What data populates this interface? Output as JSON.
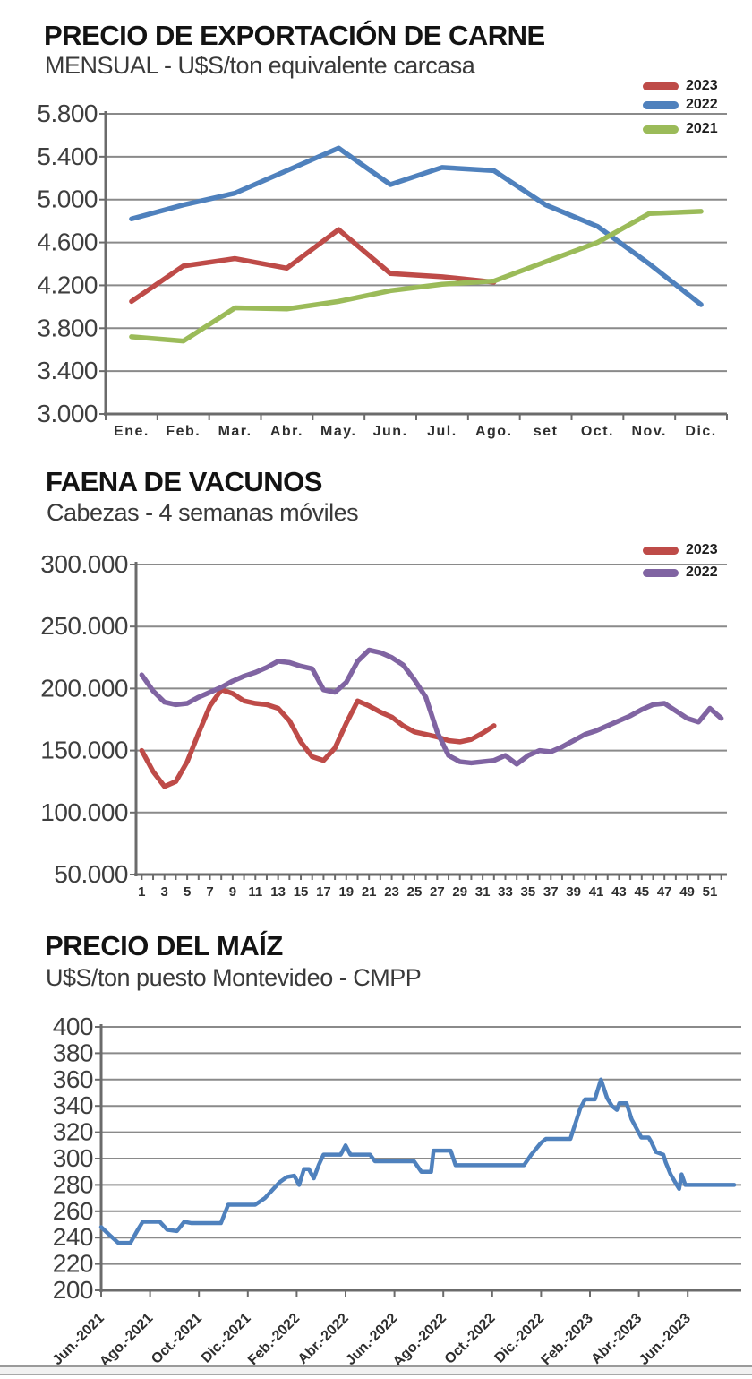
{
  "colors": {
    "red_2023": "#BE4B48",
    "blue_2022": "#4F81BD",
    "green_2021": "#9BBB59",
    "purple_2022": "#8064A2",
    "corn_blue": "#4F81BD",
    "gridline": "#8A8A8A",
    "axis": "#6B6B6B"
  },
  "chart_data": [
    {
      "type": "line",
      "title": "PRECIO DE EXPORTACIÓN DE CARNE",
      "subtitle": "MENSUAL - U$S/ton equivalente carcasa",
      "legend": [
        {
          "label": "2023",
          "color": "#BE4B48"
        },
        {
          "label": "2022",
          "color": "#4F81BD"
        },
        {
          "label": "2021",
          "color": "#9BBB59"
        }
      ],
      "categories": [
        "Ene.",
        "Feb.",
        "Mar.",
        "Abr.",
        "May.",
        "Jun.",
        "Jul.",
        "Ago.",
        "set",
        "Oct.",
        "Nov.",
        "Dic."
      ],
      "series": [
        {
          "name": "2023",
          "color": "#BE4B48",
          "values": [
            4050,
            4380,
            4450,
            4360,
            4720,
            4310,
            4280,
            4230,
            null,
            null,
            null,
            null
          ]
        },
        {
          "name": "2022",
          "color": "#4F81BD",
          "values": [
            4820,
            4950,
            5060,
            5270,
            5480,
            5140,
            5300,
            5270,
            4950,
            4750,
            4400,
            4020
          ]
        },
        {
          "name": "2021",
          "color": "#9BBB59",
          "values": [
            3720,
            3680,
            3990,
            3980,
            4050,
            4150,
            4210,
            4240,
            4420,
            4600,
            4870,
            4890
          ]
        }
      ],
      "ylim": [
        3000,
        5800
      ],
      "y_step": 400,
      "y_ticks": [
        "5.800",
        "5.400",
        "5.000",
        "4.600",
        "4.200",
        "3.800",
        "3.400",
        "3.000"
      ],
      "grid": true,
      "legend_position": "top-right"
    },
    {
      "type": "line",
      "title": "FAENA DE VACUNOS",
      "subtitle": "Cabezas - 4 semanas móviles",
      "legend": [
        {
          "label": "2023",
          "color": "#BE4B48"
        },
        {
          "label": "2022",
          "color": "#8064A2"
        }
      ],
      "x_unit": "semana",
      "x_range": [
        1,
        52
      ],
      "x_ticks": [
        "1",
        "3",
        "5",
        "7",
        "9",
        "11",
        "13",
        "15",
        "17",
        "19",
        "21",
        "23",
        "25",
        "27",
        "29",
        "31",
        "33",
        "35",
        "37",
        "39",
        "41",
        "43",
        "45",
        "47",
        "49",
        "51"
      ],
      "series": [
        {
          "name": "2023",
          "color": "#BE4B48",
          "start_week": 1,
          "values": [
            150000,
            133000,
            121000,
            125000,
            141000,
            164000,
            186000,
            199000,
            196000,
            190000,
            188000,
            187000,
            184000,
            174000,
            157000,
            145000,
            142000,
            152000,
            172000,
            190000,
            186000,
            181000,
            177000,
            170000,
            165000,
            163000,
            161000,
            158000,
            157000,
            159000,
            164000,
            170000
          ]
        },
        {
          "name": "2022",
          "color": "#8064A2",
          "start_week": 1,
          "values": [
            211000,
            198000,
            189000,
            187000,
            188000,
            193000,
            197000,
            201000,
            206000,
            210000,
            213000,
            217000,
            222000,
            221000,
            218000,
            216000,
            199000,
            197000,
            205000,
            222000,
            231000,
            229000,
            225000,
            219000,
            207000,
            193000,
            165000,
            146000,
            141000,
            140000,
            141000,
            142000,
            146000,
            139000,
            146000,
            150000,
            149000,
            153000,
            158000,
            163000,
            166000,
            170000,
            174000,
            178000,
            183000,
            187000,
            188000,
            182000,
            176000,
            173000,
            184000,
            176000
          ]
        }
      ],
      "ylim": [
        50000,
        300000
      ],
      "y_step": 50000,
      "y_ticks": [
        "300.000",
        "250.000",
        "200.000",
        "150.000",
        "100.000",
        "50.000"
      ],
      "grid": true,
      "legend_position": "top-right"
    },
    {
      "type": "line",
      "title": "PRECIO DEL MAÍZ",
      "subtitle": "U$S/ton puesto Montevideo - CMPP",
      "legend": null,
      "x_unit": "meses desde Jun.-2021",
      "x_ticks": [
        "Jun.-2021",
        "Ago.-2021",
        "Oct.-2021",
        "Dic.-2021",
        "Feb.-2022",
        "Abr.-2022",
        "Jun.-2022",
        "Ago.-2022",
        "Oct.-2022",
        "Dic.-2022",
        "Feb.-2023",
        "Abr.-2023",
        "Jun.-2023"
      ],
      "x_tick_interval_months": 2,
      "xlim": [
        0,
        26.2
      ],
      "series": [
        {
          "name": "Precio del maíz",
          "color": "#4F81BD",
          "points": [
            [
              0,
              248
            ],
            [
              0.4,
              241
            ],
            [
              0.7,
              236
            ],
            [
              1.2,
              236
            ],
            [
              1.5,
              246
            ],
            [
              1.7,
              252
            ],
            [
              2.4,
              252
            ],
            [
              2.7,
              246
            ],
            [
              3.1,
              245
            ],
            [
              3.4,
              252
            ],
            [
              3.7,
              251
            ],
            [
              4.9,
              251
            ],
            [
              5.2,
              265
            ],
            [
              6.3,
              265
            ],
            [
              6.7,
              270
            ],
            [
              7.0,
              276
            ],
            [
              7.3,
              282
            ],
            [
              7.6,
              286
            ],
            [
              7.9,
              287
            ],
            [
              8.1,
              280
            ],
            [
              8.3,
              292
            ],
            [
              8.5,
              292
            ],
            [
              8.7,
              285
            ],
            [
              8.9,
              295
            ],
            [
              9.1,
              303
            ],
            [
              9.8,
              303
            ],
            [
              10.0,
              310
            ],
            [
              10.2,
              303
            ],
            [
              11.0,
              303
            ],
            [
              11.2,
              298
            ],
            [
              12.8,
              298
            ],
            [
              13.1,
              290
            ],
            [
              13.5,
              290
            ],
            [
              13.6,
              306
            ],
            [
              14.3,
              306
            ],
            [
              14.5,
              295
            ],
            [
              17.3,
              295
            ],
            [
              17.6,
              303
            ],
            [
              18.0,
              312
            ],
            [
              18.2,
              315
            ],
            [
              19.2,
              315
            ],
            [
              19.6,
              338
            ],
            [
              19.8,
              345
            ],
            [
              20.2,
              345
            ],
            [
              20.45,
              360
            ],
            [
              20.7,
              346
            ],
            [
              20.9,
              340
            ],
            [
              21.1,
              337
            ],
            [
              21.2,
              342
            ],
            [
              21.5,
              342
            ],
            [
              21.7,
              330
            ],
            [
              21.9,
              323
            ],
            [
              22.1,
              316
            ],
            [
              22.4,
              316
            ],
            [
              22.5,
              313
            ],
            [
              22.7,
              305
            ],
            [
              23.0,
              303
            ],
            [
              23.1,
              297
            ],
            [
              23.3,
              288
            ],
            [
              23.55,
              280
            ],
            [
              23.65,
              277
            ],
            [
              23.75,
              288
            ],
            [
              23.9,
              280
            ],
            [
              25.9,
              280
            ]
          ]
        }
      ],
      "ylim": [
        200,
        400
      ],
      "y_step": 20,
      "y_ticks": [
        "400",
        "380",
        "360",
        "340",
        "320",
        "300",
        "280",
        "260",
        "240",
        "220",
        "200"
      ],
      "grid": true
    }
  ]
}
